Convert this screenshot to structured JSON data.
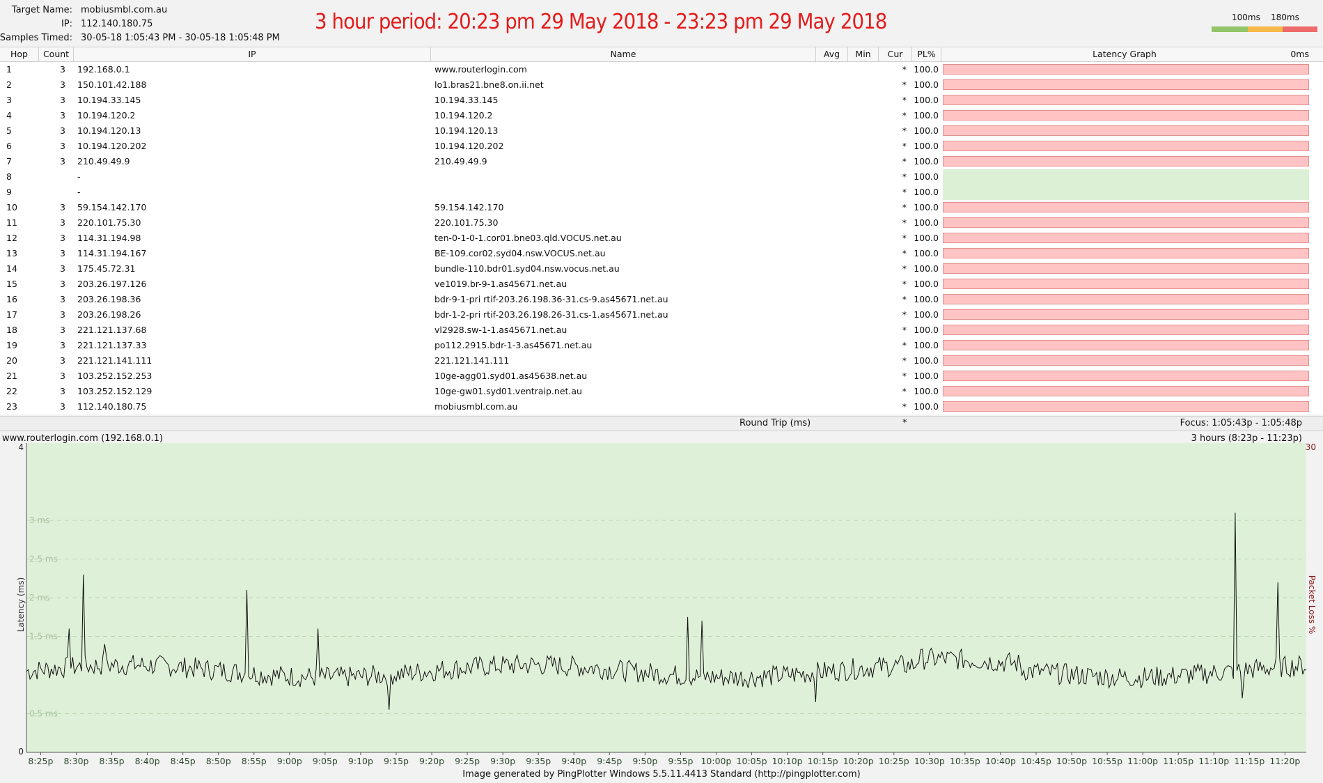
{
  "header": {
    "target_label": "Target Name:",
    "target_value": "mobiusmbl.com.au",
    "ip_label": "IP:",
    "ip_value": "112.140.180.75",
    "samples_label": "Samples Timed:",
    "samples_value": "30-05-18 1:05:43 PM - 30-05-18 1:05:48 PM",
    "period": "3 hour period:  20:23 pm 29 May 2018 - 23:23 pm 29 May 2018",
    "scale_100": "100ms",
    "scale_180": "180ms",
    "scale_colors": [
      "#93c46a",
      "#f6b94a",
      "#ee6b6b"
    ]
  },
  "columns": {
    "hop": "Hop",
    "count": "Count",
    "ip": "IP",
    "name": "Name",
    "avg": "Avg",
    "min": "Min",
    "cur": "Cur",
    "pl": "PL%",
    "graph": "Latency Graph",
    "graph_ms": "0ms"
  },
  "hops": [
    {
      "hop": "1",
      "count": "3",
      "ip": "192.168.0.1",
      "name": "www.routerlogin.com",
      "cur": "*",
      "pl": "100.0",
      "ok": false
    },
    {
      "hop": "2",
      "count": "3",
      "ip": "150.101.42.188",
      "name": "lo1.bras21.bne8.on.ii.net",
      "cur": "*",
      "pl": "100.0",
      "ok": false
    },
    {
      "hop": "3",
      "count": "3",
      "ip": "10.194.33.145",
      "name": "10.194.33.145",
      "cur": "*",
      "pl": "100.0",
      "ok": false
    },
    {
      "hop": "4",
      "count": "3",
      "ip": "10.194.120.2",
      "name": "10.194.120.2",
      "cur": "*",
      "pl": "100.0",
      "ok": false
    },
    {
      "hop": "5",
      "count": "3",
      "ip": "10.194.120.13",
      "name": "10.194.120.13",
      "cur": "*",
      "pl": "100.0",
      "ok": false
    },
    {
      "hop": "6",
      "count": "3",
      "ip": "10.194.120.202",
      "name": "10.194.120.202",
      "cur": "*",
      "pl": "100.0",
      "ok": false
    },
    {
      "hop": "7",
      "count": "3",
      "ip": "210.49.49.9",
      "name": "210.49.49.9",
      "cur": "*",
      "pl": "100.0",
      "ok": false
    },
    {
      "hop": "8",
      "count": "",
      "ip": "-",
      "name": "",
      "cur": "*",
      "pl": "100.0",
      "ok": true
    },
    {
      "hop": "9",
      "count": "",
      "ip": "-",
      "name": "",
      "cur": "*",
      "pl": "100.0",
      "ok": true
    },
    {
      "hop": "10",
      "count": "3",
      "ip": "59.154.142.170",
      "name": "59.154.142.170",
      "cur": "*",
      "pl": "100.0",
      "ok": false
    },
    {
      "hop": "11",
      "count": "3",
      "ip": "220.101.75.30",
      "name": "220.101.75.30",
      "cur": "*",
      "pl": "100.0",
      "ok": false
    },
    {
      "hop": "12",
      "count": "3",
      "ip": "114.31.194.98",
      "name": "ten-0-1-0-1.cor01.bne03.qld.VOCUS.net.au",
      "cur": "*",
      "pl": "100.0",
      "ok": false
    },
    {
      "hop": "13",
      "count": "3",
      "ip": "114.31.194.167",
      "name": "BE-109.cor02.syd04.nsw.VOCUS.net.au",
      "cur": "*",
      "pl": "100.0",
      "ok": false
    },
    {
      "hop": "14",
      "count": "3",
      "ip": "175.45.72.31",
      "name": "bundle-110.bdr01.syd04.nsw.vocus.net.au",
      "cur": "*",
      "pl": "100.0",
      "ok": false
    },
    {
      "hop": "15",
      "count": "3",
      "ip": "203.26.197.126",
      "name": "ve1019.br-9-1.as45671.net.au",
      "cur": "*",
      "pl": "100.0",
      "ok": false
    },
    {
      "hop": "16",
      "count": "3",
      "ip": "203.26.198.36",
      "name": "bdr-9-1-pri rtif-203.26.198.36-31.cs-9.as45671.net.au",
      "cur": "*",
      "pl": "100.0",
      "ok": false
    },
    {
      "hop": "17",
      "count": "3",
      "ip": "203.26.198.26",
      "name": "bdr-1-2-pri rtif-203.26.198.26-31.cs-1.as45671.net.au",
      "cur": "*",
      "pl": "100.0",
      "ok": false
    },
    {
      "hop": "18",
      "count": "3",
      "ip": "221.121.137.68",
      "name": "vl2928.sw-1-1.as45671.net.au",
      "cur": "*",
      "pl": "100.0",
      "ok": false
    },
    {
      "hop": "19",
      "count": "3",
      "ip": "221.121.137.33",
      "name": "po112.2915.bdr-1-3.as45671.net.au",
      "cur": "*",
      "pl": "100.0",
      "ok": false
    },
    {
      "hop": "20",
      "count": "3",
      "ip": "221.121.141.111",
      "name": "221.121.141.111",
      "cur": "*",
      "pl": "100.0",
      "ok": false
    },
    {
      "hop": "21",
      "count": "3",
      "ip": "103.252.152.253",
      "name": "10ge-agg01.syd01.as45638.net.au",
      "cur": "*",
      "pl": "100.0",
      "ok": false
    },
    {
      "hop": "22",
      "count": "3",
      "ip": "103.252.152.129",
      "name": "10ge-gw01.syd01.ventraip.net.au",
      "cur": "*",
      "pl": "100.0",
      "ok": false
    },
    {
      "hop": "23",
      "count": "3",
      "ip": "112.140.180.75",
      "name": "mobiusmbl.com.au",
      "cur": "*",
      "pl": "100.0",
      "ok": false
    }
  ],
  "roundtrip": {
    "label": "Round Trip (ms)",
    "cur": "*",
    "focus": "Focus: 1:05:43p - 1:05:48p"
  },
  "graph": {
    "title": "www.routerlogin.com (192.168.0.1)",
    "range": "3 hours (8:23p - 11:23p)",
    "footer": "Image generated by PingPlotter Windows 5.5.11.4413 Standard (http://pingplotter.com)"
  },
  "chart_data": {
    "type": "line",
    "ylabel": "Latency (ms)",
    "y2label": "Packet Loss %",
    "ylim": [
      0,
      4
    ],
    "y2_top": "30",
    "y_axis_ticks": [
      "4",
      "0"
    ],
    "y_grid_labels": [
      "3 ms",
      "2.5 ms",
      "2 ms",
      "1.5 ms",
      "0.5 ms"
    ],
    "y_grid_values": [
      3,
      2.5,
      2,
      1.5,
      0.5
    ],
    "x_tick_labels": [
      "8:25p",
      "8:30p",
      "8:35p",
      "8:40p",
      "8:45p",
      "8:50p",
      "8:55p",
      "9:00p",
      "9:05p",
      "9:10p",
      "9:15p",
      "9:20p",
      "9:25p",
      "9:30p",
      "9:35p",
      "9:40p",
      "9:45p",
      "9:50p",
      "9:55p",
      "10:00p",
      "10:05p",
      "10:10p",
      "10:15p",
      "10:20p",
      "10:25p",
      "10:30p",
      "10:35p",
      "10:40p",
      "10:45p",
      "10:50p",
      "10:55p",
      "11:00p",
      "11:05p",
      "11:10p",
      "11:15p",
      "11:20p"
    ],
    "x_start": "8:23p",
    "x_end": "11:23p",
    "baseline_ms": 1.05,
    "spikes": [
      {
        "time": "8:29p",
        "ms": 1.6
      },
      {
        "time": "8:31p",
        "ms": 2.3
      },
      {
        "time": "8:34p",
        "ms": 1.4
      },
      {
        "time": "8:54p",
        "ms": 2.1
      },
      {
        "time": "9:04p",
        "ms": 1.6
      },
      {
        "time": "9:14p",
        "ms": 0.55
      },
      {
        "time": "9:56p",
        "ms": 1.75
      },
      {
        "time": "9:58p",
        "ms": 1.7
      },
      {
        "time": "10:14p",
        "ms": 0.65
      },
      {
        "time": "11:13p",
        "ms": 3.1
      },
      {
        "time": "11:14p",
        "ms": 0.7
      },
      {
        "time": "11:19p",
        "ms": 2.2
      }
    ],
    "grid": true,
    "background": "#dff0d8"
  }
}
